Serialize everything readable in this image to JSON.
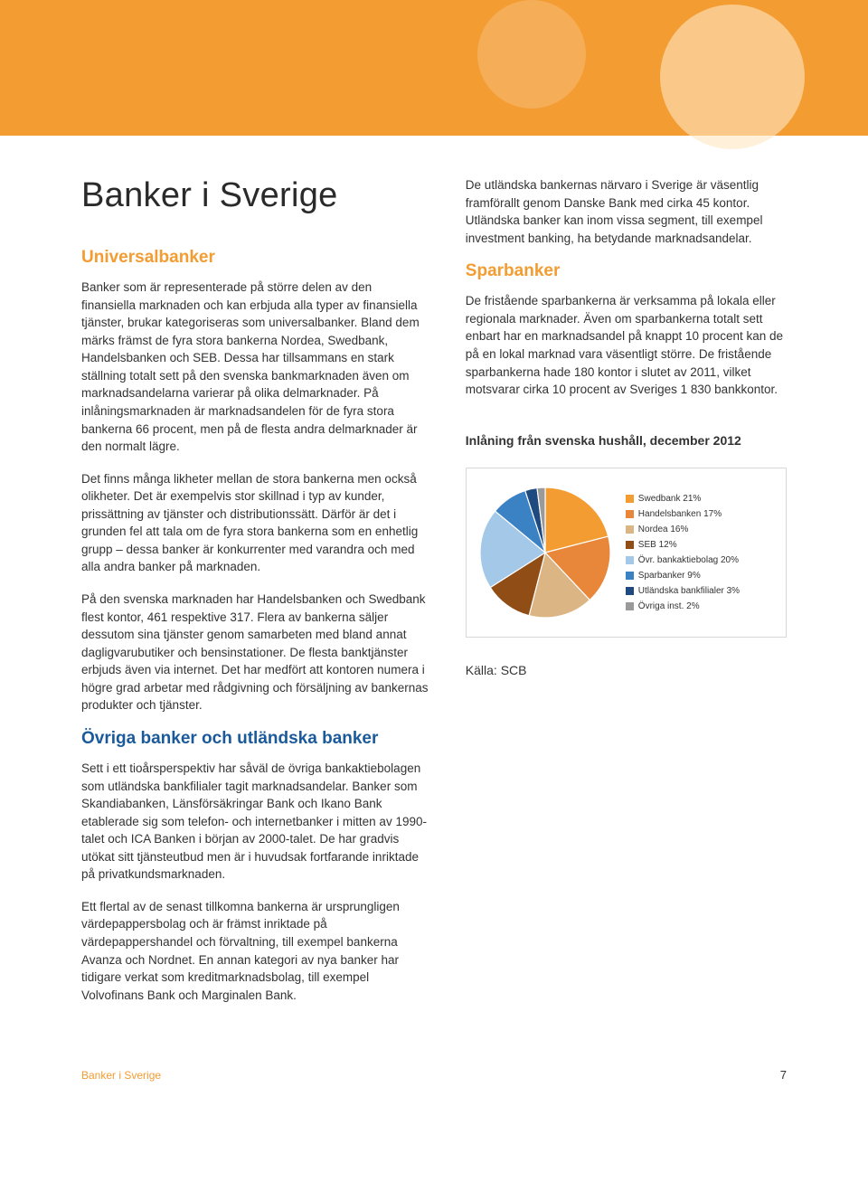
{
  "header_color": "#f39c32",
  "title": "Banker i Sverige",
  "left": {
    "h2_universal": "Universalbanker",
    "p1": "Banker som är representerade på större delen av den finansiella marknaden och kan erbjuda alla typer av finansiella tjänster, brukar kategoriseras som universalbanker. Bland dem märks främst de fyra stora bankerna Nordea, Swedbank, Handelsbanken och SEB. Dessa har tillsammans en stark ställning totalt sett på den svenska bankmarknaden även om marknadsandelarna varierar på olika delmarknader. På inlåningsmarknaden är marknadsandelen för de fyra stora bankerna 66 procent, men på de flesta andra delmarknader är den normalt lägre.",
    "p2": "Det finns många likheter mellan de stora bankerna men också olikheter. Det är exempelvis stor skillnad i typ av kunder, prissättning av tjänster och distributionssätt. Därför är det i grunden fel att tala om de fyra stora bankerna som en enhetlig grupp – dessa banker är konkurrenter med varandra och med alla andra banker på marknaden.",
    "p3": "På den svenska marknaden har Handelsbanken och Swedbank flest kontor, 461 respektive 317. Flera av bankerna säljer dessutom sina tjänster genom samarbeten med bland annat dagligvarubutiker och bensinstationer. De flesta banktjänster erbjuds även via internet. Det har medfört att kontoren numera i högre grad arbetar med rådgivning och försäljning av bankernas produkter och tjänster.",
    "h2_ovriga": "Övriga banker och utländska banker",
    "p4": "Sett i ett tioårsperspektiv har såväl de övriga bankaktiebolagen som utländska bankfilialer tagit marknadsandelar. Banker som Skandiabanken, Länsförsäkringar Bank och Ikano Bank etablerade sig som telefon- och internetbanker i mitten av 1990-talet och ICA Banken i början av 2000-talet. De har gradvis utökat sitt tjänsteutbud men är i huvudsak fortfarande inriktade på privatkundsmarknaden.",
    "p5": "Ett flertal av de senast tillkomna bankerna är ursprungligen värdepappersbolag och är främst inriktade på värdepappershandel och förvaltning, till exempel bankerna Avanza och Nordnet. En annan kategori av nya banker har tidigare verkat som kreditmarknadsbolag, till exempel Volvofinans Bank och Marginalen Bank."
  },
  "right": {
    "p_intro": "De utländska bankernas närvaro i Sverige är väsentlig framförallt genom Danske Bank med cirka 45 kontor. Utländska banker kan inom vissa segment, till exempel investment banking, ha betydande marknadsandelar.",
    "h2_spar": "Sparbanker",
    "p_spar": "De fristående sparbankerna är verksamma på lokala eller regionala marknader. Även om sparbankerna totalt sett enbart har en marknadsandel på knappt 10 procent kan de på en lokal marknad vara väsentligt större. De fristående sparbankerna hade 180 kontor i slutet av 2011, vilket motsvarar cirka 10 procent av Sveriges 1 830 bankkontor.",
    "chart_title": "Inlåning från svenska hushåll, december 2012",
    "source": "Källa: SCB"
  },
  "pie": {
    "type": "pie",
    "background_color": "#ffffff",
    "border_color": "#d8d8d8",
    "start_angle_deg": -90,
    "slices": [
      {
        "label": "Swedbank 21%",
        "value": 21,
        "color": "#f39c32"
      },
      {
        "label": "Handelsbanken 17%",
        "value": 17,
        "color": "#e8863a"
      },
      {
        "label": "Nordea 16%",
        "value": 16,
        "color": "#dcb584"
      },
      {
        "label": "SEB 12%",
        "value": 12,
        "color": "#904e16"
      },
      {
        "label": "Övr. bankaktiebolag 20%",
        "value": 20,
        "color": "#a3c8e8"
      },
      {
        "label": "Sparbanker 9%",
        "value": 9,
        "color": "#3b82c4"
      },
      {
        "label": "Utländska bankfilialer 3%",
        "value": 3,
        "color": "#1e4a80"
      },
      {
        "label": "Övriga inst. 2%",
        "value": 2,
        "color": "#9a9a9a"
      }
    ],
    "label_fontsize": 10
  },
  "footer": {
    "title": "Banker i Sverige",
    "page": "7"
  }
}
